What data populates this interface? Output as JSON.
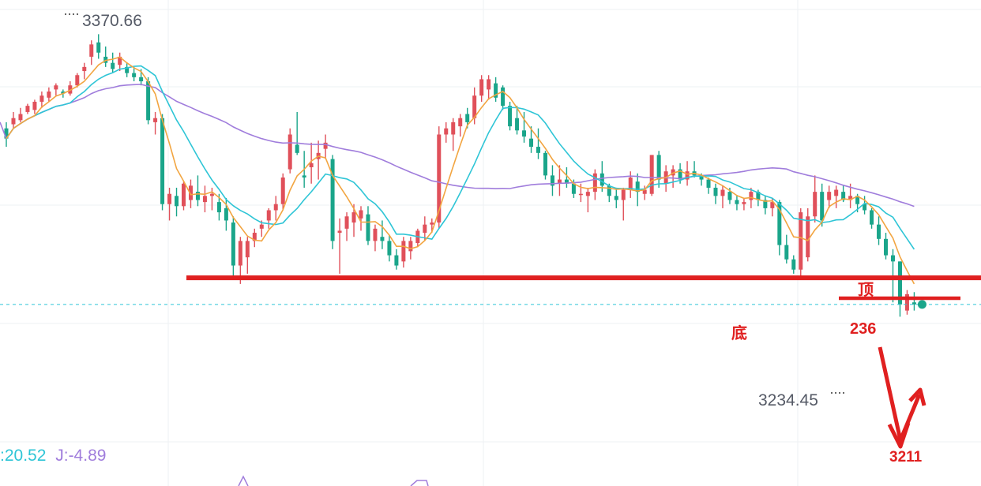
{
  "chart_data": {
    "type": "candlestick",
    "y_range": [
      3195,
      3380
    ],
    "grid": true,
    "high_label": "3370.66",
    "low_label": "3234.45",
    "current_price": 3239,
    "support_line": 3252,
    "resistance_236": 3242,
    "target_price": 3211,
    "annotations": {
      "top": "顶",
      "bottom": "底",
      "level_236": "236",
      "target": "3211"
    },
    "indicator": {
      "k_label": ":20.52",
      "j_label": "J:-4.89"
    },
    "colors": {
      "up": "#e0505a",
      "down": "#1aa58a",
      "ma_fast": "#f2a541",
      "ma_mid": "#2ec5d6",
      "ma_slow": "#a07ddc",
      "annotation": "#e02020",
      "grid": "#eef0f3"
    },
    "candles": [
      [
        3325,
        3328,
        3316,
        3320
      ],
      [
        3327,
        3333,
        3325,
        3330
      ],
      [
        3329,
        3335,
        3328,
        3332
      ],
      [
        3333,
        3337,
        3332,
        3336
      ],
      [
        3334,
        3339,
        3332,
        3338
      ],
      [
        3338,
        3343,
        3335,
        3341
      ],
      [
        3340,
        3345,
        3338,
        3343
      ],
      [
        3344,
        3347,
        3341,
        3346
      ],
      [
        3343,
        3344,
        3340,
        3342
      ],
      [
        3342,
        3348,
        3341,
        3346
      ],
      [
        3346,
        3352,
        3345,
        3351
      ],
      [
        3353,
        3357,
        3349,
        3355
      ],
      [
        3360,
        3368,
        3356,
        3366
      ],
      [
        3367,
        3371,
        3359,
        3362
      ],
      [
        3360,
        3365,
        3355,
        3357
      ],
      [
        3357,
        3362,
        3352,
        3354
      ],
      [
        3356,
        3362,
        3353,
        3360
      ],
      [
        3355,
        3357,
        3350,
        3352
      ],
      [
        3352,
        3355,
        3348,
        3350
      ],
      [
        3350,
        3354,
        3346,
        3348
      ],
      [
        3348,
        3350,
        3327,
        3329
      ],
      [
        3328,
        3333,
        3322,
        3330
      ],
      [
        3330,
        3332,
        3285,
        3288
      ],
      [
        3288,
        3296,
        3280,
        3293
      ],
      [
        3292,
        3296,
        3282,
        3287
      ],
      [
        3287,
        3299,
        3285,
        3298
      ],
      [
        3290,
        3300,
        3286,
        3297
      ],
      [
        3294,
        3302,
        3287,
        3290
      ],
      [
        3289,
        3297,
        3284,
        3292
      ],
      [
        3292,
        3296,
        3285,
        3293
      ],
      [
        3289,
        3293,
        3280,
        3284
      ],
      [
        3286,
        3291,
        3275,
        3280
      ],
      [
        3279,
        3282,
        3252,
        3258
      ],
      [
        3258,
        3272,
        3249,
        3270
      ],
      [
        3262,
        3272,
        3254,
        3270
      ],
      [
        3270,
        3276,
        3267,
        3274
      ],
      [
        3276,
        3280,
        3272,
        3278
      ],
      [
        3280,
        3286,
        3276,
        3285
      ],
      [
        3285,
        3292,
        3280,
        3288
      ],
      [
        3288,
        3303,
        3285,
        3301
      ],
      [
        3305,
        3325,
        3303,
        3322
      ],
      [
        3317,
        3333,
        3312,
        3313
      ],
      [
        3302,
        3314,
        3296,
        3301
      ],
      [
        3306,
        3318,
        3298,
        3308
      ],
      [
        3310,
        3319,
        3300,
        3313
      ],
      [
        3315,
        3322,
        3310,
        3318
      ],
      [
        3310,
        3312,
        3266,
        3270
      ],
      [
        3274,
        3281,
        3254,
        3275
      ],
      [
        3276,
        3284,
        3270,
        3282
      ],
      [
        3279,
        3288,
        3272,
        3284
      ],
      [
        3281,
        3287,
        3275,
        3285
      ],
      [
        3283,
        3287,
        3268,
        3270
      ],
      [
        3270,
        3278,
        3265,
        3276
      ],
      [
        3272,
        3280,
        3266,
        3270
      ],
      [
        3270,
        3273,
        3260,
        3263
      ],
      [
        3263,
        3266,
        3256,
        3258
      ],
      [
        3260,
        3272,
        3257,
        3270
      ],
      [
        3265,
        3272,
        3261,
        3270
      ],
      [
        3269,
        3276,
        3267,
        3275
      ],
      [
        3274,
        3282,
        3270,
        3278
      ],
      [
        3278,
        3281,
        3274,
        3279
      ],
      [
        3279,
        3326,
        3276,
        3322
      ],
      [
        3322,
        3328,
        3318,
        3325
      ],
      [
        3322,
        3330,
        3314,
        3328
      ],
      [
        3326,
        3332,
        3321,
        3330
      ],
      [
        3332,
        3335,
        3325,
        3328
      ],
      [
        3330,
        3345,
        3327,
        3341
      ],
      [
        3341,
        3351,
        3338,
        3349
      ],
      [
        3344,
        3351,
        3339,
        3349
      ],
      [
        3347,
        3350,
        3338,
        3340
      ],
      [
        3345,
        3346,
        3334,
        3336
      ],
      [
        3336,
        3338,
        3324,
        3326
      ],
      [
        3330,
        3336,
        3322,
        3324
      ],
      [
        3324,
        3333,
        3318,
        3321
      ],
      [
        3320,
        3326,
        3313,
        3316
      ],
      [
        3316,
        3325,
        3310,
        3313
      ],
      [
        3313,
        3314,
        3300,
        3302
      ],
      [
        3302,
        3307,
        3292,
        3297
      ],
      [
        3298,
        3307,
        3292,
        3300
      ],
      [
        3300,
        3306,
        3296,
        3298
      ],
      [
        3298,
        3300,
        3291,
        3293
      ],
      [
        3293,
        3298,
        3289,
        3293
      ],
      [
        3292,
        3296,
        3284,
        3294
      ],
      [
        3294,
        3305,
        3290,
        3303
      ],
      [
        3303,
        3309,
        3294,
        3297
      ],
      [
        3297,
        3298,
        3289,
        3292
      ],
      [
        3292,
        3296,
        3286,
        3290
      ],
      [
        3290,
        3296,
        3280,
        3295
      ],
      [
        3295,
        3304,
        3291,
        3301
      ],
      [
        3299,
        3303,
        3287,
        3294
      ],
      [
        3293,
        3297,
        3290,
        3295
      ],
      [
        3293,
        3312,
        3292,
        3312
      ],
      [
        3312,
        3314,
        3296,
        3300
      ],
      [
        3298,
        3307,
        3294,
        3304
      ],
      [
        3302,
        3307,
        3296,
        3305
      ],
      [
        3305,
        3308,
        3298,
        3300
      ],
      [
        3300,
        3309,
        3297,
        3304
      ],
      [
        3304,
        3309,
        3301,
        3302
      ],
      [
        3302,
        3303,
        3297,
        3300
      ],
      [
        3300,
        3301,
        3293,
        3296
      ],
      [
        3296,
        3298,
        3288,
        3292
      ],
      [
        3292,
        3297,
        3286,
        3295
      ],
      [
        3294,
        3296,
        3288,
        3290
      ],
      [
        3290,
        3292,
        3285,
        3288
      ],
      [
        3288,
        3291,
        3285,
        3289
      ],
      [
        3290,
        3296,
        3286,
        3294
      ],
      [
        3294,
        3295,
        3287,
        3290
      ],
      [
        3290,
        3292,
        3283,
        3286
      ],
      [
        3286,
        3291,
        3282,
        3289
      ],
      [
        3289,
        3290,
        3263,
        3268
      ],
      [
        3268,
        3273,
        3259,
        3261
      ],
      [
        3261,
        3263,
        3254,
        3256
      ],
      [
        3256,
        3286,
        3252,
        3284
      ],
      [
        3262,
        3286,
        3260,
        3282
      ],
      [
        3282,
        3302,
        3279,
        3294
      ],
      [
        3294,
        3298,
        3277,
        3280
      ],
      [
        3290,
        3297,
        3286,
        3294
      ],
      [
        3292,
        3297,
        3286,
        3295
      ],
      [
        3294,
        3297,
        3289,
        3290
      ],
      [
        3290,
        3298,
        3286,
        3292
      ],
      [
        3292,
        3293,
        3284,
        3288
      ],
      [
        3288,
        3292,
        3283,
        3285
      ],
      [
        3285,
        3286,
        3276,
        3278
      ],
      [
        3278,
        3282,
        3268,
        3271
      ],
      [
        3271,
        3274,
        3261,
        3263
      ],
      [
        3263,
        3266,
        3240,
        3260
      ],
      [
        3260,
        3260,
        3233,
        3239
      ],
      [
        3236,
        3246,
        3234,
        3244
      ],
      [
        3240,
        3245,
        3236,
        3239
      ]
    ]
  }
}
